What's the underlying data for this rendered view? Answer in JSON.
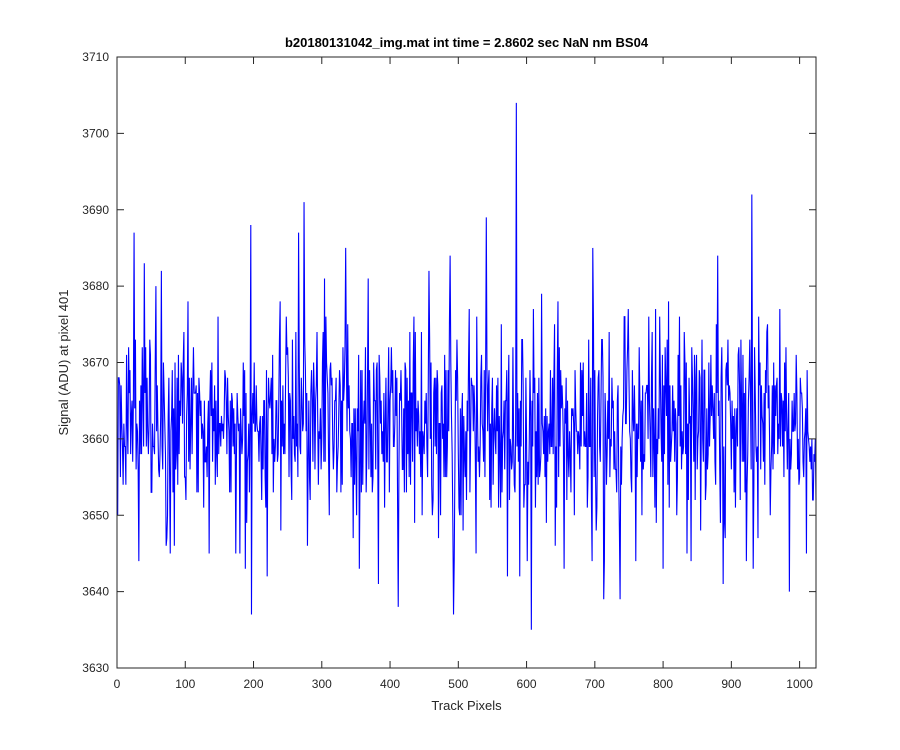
{
  "chart_data": {
    "type": "line",
    "title": "b20180131042_img.mat int time = 2.8602 sec  NaN nm BS04",
    "xlabel": "Track Pixels",
    "ylabel": "Signal (ADU) at pixel 401",
    "xlim": [
      0,
      1024
    ],
    "ylim": [
      3630,
      3710
    ],
    "xticks": [
      0,
      100,
      200,
      300,
      400,
      500,
      600,
      700,
      800,
      900,
      1000
    ],
    "yticks": [
      3630,
      3640,
      3650,
      3660,
      3670,
      3680,
      3690,
      3700,
      3710
    ],
    "grid": false,
    "legend": "none",
    "line_color": "#0000ff",
    "num_points": 1024,
    "signal_mean": 3662,
    "signal_std": 7,
    "notable_points": [
      {
        "x": 1,
        "y": 3650
      },
      {
        "x": 25,
        "y": 3687
      },
      {
        "x": 32,
        "y": 3644
      },
      {
        "x": 40,
        "y": 3683
      },
      {
        "x": 65,
        "y": 3682
      },
      {
        "x": 135,
        "y": 3645
      },
      {
        "x": 188,
        "y": 3643
      },
      {
        "x": 196,
        "y": 3688
      },
      {
        "x": 197,
        "y": 3637
      },
      {
        "x": 220,
        "y": 3642
      },
      {
        "x": 266,
        "y": 3687
      },
      {
        "x": 274,
        "y": 3691
      },
      {
        "x": 335,
        "y": 3685
      },
      {
        "x": 355,
        "y": 3643
      },
      {
        "x": 383,
        "y": 3641
      },
      {
        "x": 412,
        "y": 3638
      },
      {
        "x": 457,
        "y": 3682
      },
      {
        "x": 488,
        "y": 3684
      },
      {
        "x": 493,
        "y": 3637
      },
      {
        "x": 541,
        "y": 3689
      },
      {
        "x": 572,
        "y": 3642
      },
      {
        "x": 585,
        "y": 3704
      },
      {
        "x": 590,
        "y": 3642
      },
      {
        "x": 607,
        "y": 3635
      },
      {
        "x": 655,
        "y": 3643
      },
      {
        "x": 697,
        "y": 3685
      },
      {
        "x": 713,
        "y": 3639
      },
      {
        "x": 737,
        "y": 3639
      },
      {
        "x": 800,
        "y": 3643
      },
      {
        "x": 880,
        "y": 3684
      },
      {
        "x": 888,
        "y": 3641
      },
      {
        "x": 930,
        "y": 3692
      },
      {
        "x": 932,
        "y": 3643
      },
      {
        "x": 985,
        "y": 3640
      },
      {
        "x": 1010,
        "y": 3645
      }
    ]
  }
}
